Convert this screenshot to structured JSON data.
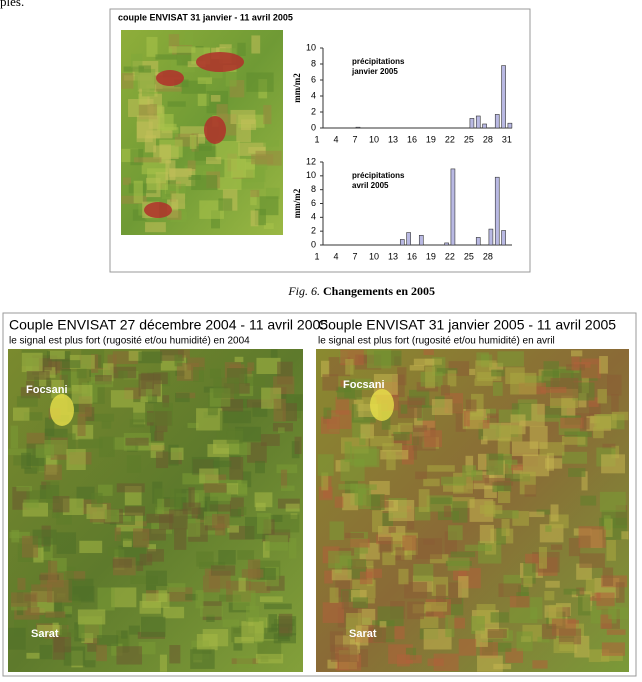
{
  "intro_text": "ples.",
  "figure_title": "couple ENVISAT 31 janvier - 11 avril 2005",
  "chart_data": [
    {
      "type": "bar",
      "annotation": [
        "précipitations",
        "janvier 2005"
      ],
      "y_label": "mm/m2",
      "categories": [
        "1",
        null,
        null,
        "4",
        null,
        null,
        "7",
        null,
        null,
        "10",
        null,
        null,
        "13",
        null,
        null,
        "16",
        null,
        null,
        "19",
        null,
        null,
        "22",
        null,
        null,
        "25",
        null,
        null,
        "28",
        null,
        null,
        "31"
      ],
      "values": [
        0,
        0,
        0,
        0,
        0,
        0,
        0.1,
        0,
        0,
        0,
        0,
        0,
        0,
        0,
        0,
        0,
        0,
        0,
        0,
        0,
        0,
        0,
        0,
        0,
        1.2,
        1.5,
        0.5,
        0,
        1.7,
        7.8,
        0.6
      ],
      "color": "#b9b9e3",
      "ylim": [
        0,
        10
      ],
      "yticks": [
        0,
        2,
        4,
        6,
        8,
        10
      ]
    },
    {
      "type": "bar",
      "annotation": [
        "précipitations",
        "avril 2005"
      ],
      "y_label": "mm/m2",
      "categories": [
        "1",
        null,
        null,
        "4",
        null,
        null,
        "7",
        null,
        null,
        "10",
        null,
        null,
        "13",
        null,
        null,
        "16",
        null,
        null,
        "19",
        null,
        null,
        "22",
        null,
        null,
        "25",
        null,
        null,
        "28",
        null,
        null
      ],
      "values": [
        0,
        0,
        0,
        0,
        0,
        0,
        0,
        0,
        0,
        0,
        0,
        0,
        0,
        0.8,
        1.8,
        0,
        1.4,
        0,
        0,
        0,
        0.3,
        11,
        0,
        0,
        0,
        1.1,
        0,
        2.3,
        9.8,
        2.1
      ],
      "color": "#b9b9e3",
      "ylim": [
        0,
        12
      ],
      "yticks": [
        0,
        2,
        4,
        6,
        8,
        10,
        12
      ]
    }
  ],
  "caption": {
    "label": "Fig. 6.",
    "text": "Changements en 2005"
  },
  "panels": [
    {
      "title": "Couple ENVISAT 27 décembre 2004 -  11 avril 2005",
      "subtitle": "le signal est plus fort (rugosité et/ou humidité) en 2004",
      "places": [
        "Focsani",
        "Sarat"
      ]
    },
    {
      "title": "Couple ENVISAT 31 janvier 2005 -  11 avril 2005",
      "subtitle": "le signal est plus fort (rugosité et/ou humidité) en avril",
      "places": [
        "Focsani",
        "Sarat"
      ]
    }
  ]
}
